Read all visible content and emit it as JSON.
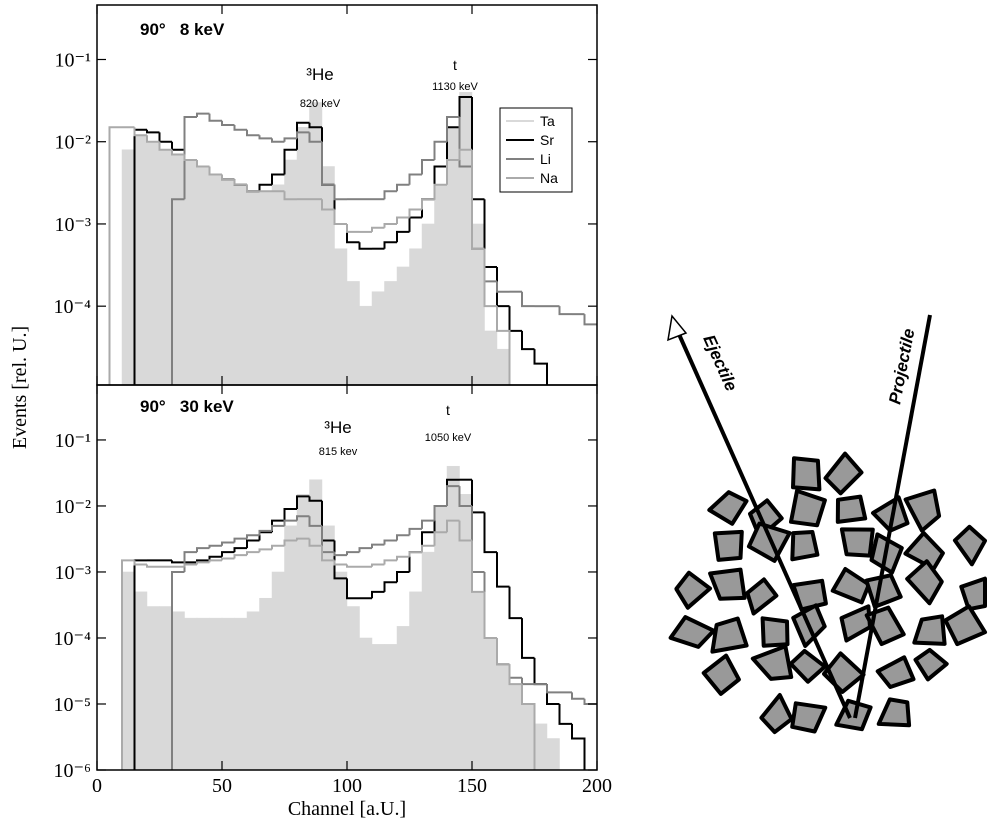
{
  "chart_data": [
    {
      "type": "histogram",
      "ylabel": "Events [rel. U.]",
      "log_y": true,
      "legend": "right",
      "annotations": [
        "90°   8 keV",
        "³He",
        "820 keV",
        "t",
        "1130 keV"
      ],
      "xlim": [
        0,
        200
      ],
      "ylim": [
        1.1e-05,
        0.46
      ],
      "yticks": [
        {
          "value": 0.1,
          "label": "10⁻¹"
        },
        {
          "value": 0.01,
          "label": "10⁻²"
        },
        {
          "value": 0.001,
          "label": "10⁻³"
        },
        {
          "value": 0.0001,
          "label": "10⁻⁴"
        }
      ],
      "bins": [
        0,
        5,
        10,
        15,
        20,
        25,
        30,
        35,
        40,
        45,
        50,
        55,
        60,
        65,
        70,
        75,
        80,
        85,
        90,
        95,
        100,
        105,
        110,
        115,
        120,
        125,
        130,
        135,
        140,
        145,
        150,
        155,
        160,
        165,
        170,
        175,
        180,
        185,
        190,
        195,
        200
      ],
      "series": [
        {
          "name": "Ta",
          "color": "#d9d9d9",
          "style": "filled",
          "values": [
            null,
            null,
            0.008,
            0.012,
            0.01,
            0.008,
            0.007,
            0.006,
            0.005,
            0.004,
            0.0035,
            0.003,
            0.0025,
            0.0025,
            0.003,
            0.006,
            0.015,
            0.03,
            0.005,
            0.0005,
            0.0002,
            0.0001,
            0.00015,
            0.0002,
            0.0003,
            0.0005,
            0.001,
            0.003,
            0.015,
            0.04,
            0.001,
            5e-05,
            3e-05,
            null,
            null,
            null,
            null,
            null,
            null,
            null
          ]
        },
        {
          "name": "Sr",
          "color": "#000000",
          "style": "step",
          "values": [
            null,
            null,
            null,
            0.014,
            0.013,
            0.01,
            0.008,
            0.006,
            0.005,
            0.004,
            0.0035,
            0.003,
            0.0025,
            0.003,
            0.004,
            0.008,
            0.017,
            0.015,
            0.003,
            0.001,
            0.0006,
            0.0005,
            0.0005,
            0.0006,
            0.0008,
            0.0012,
            0.002,
            0.005,
            0.015,
            0.035,
            0.002,
            0.0003,
            0.0001,
            5e-05,
            3e-05,
            2e-05,
            null,
            null,
            null,
            null
          ]
        },
        {
          "name": "Li",
          "color": "#808080",
          "style": "step",
          "values": [
            null,
            null,
            null,
            null,
            null,
            null,
            0.002,
            0.02,
            0.022,
            0.018,
            0.016,
            0.014,
            0.012,
            0.011,
            0.01,
            0.011,
            0.013,
            0.01,
            0.003,
            0.002,
            0.002,
            0.002,
            0.002,
            0.0025,
            0.003,
            0.004,
            0.006,
            0.01,
            0.02,
            0.005,
            0.0005,
            0.0002,
            0.00015,
            0.00015,
            0.0001,
            0.0001,
            0.0001,
            8e-05,
            8e-05,
            6e-05
          ]
        },
        {
          "name": "Na",
          "color": "#aaaaaa",
          "style": "step",
          "values": [
            null,
            0.015,
            0.015,
            0.012,
            0.01,
            0.008,
            0.007,
            0.006,
            0.005,
            0.004,
            0.0035,
            0.003,
            0.0025,
            0.0025,
            0.0025,
            0.002,
            0.002,
            0.002,
            0.0015,
            0.001,
            0.0008,
            0.0008,
            0.0009,
            0.001,
            0.0012,
            0.0015,
            0.002,
            0.003,
            0.006,
            0.008,
            0.0005,
            0.0001,
            5e-05,
            null,
            null,
            null,
            null,
            null,
            null,
            null
          ]
        }
      ]
    },
    {
      "type": "histogram",
      "xlabel": "Channel [a.U.]",
      "log_y": true,
      "annotations": [
        "90°   30 keV",
        "³He",
        "815 kev",
        "t",
        "1050 keV"
      ],
      "xlim": [
        0,
        200
      ],
      "xticks": [
        0,
        50,
        100,
        150,
        200
      ],
      "ylim": [
        1e-06,
        0.68
      ],
      "yticks": [
        {
          "value": 0.1,
          "label": "10⁻¹"
        },
        {
          "value": 0.01,
          "label": "10⁻²"
        },
        {
          "value": 0.001,
          "label": "10⁻³"
        },
        {
          "value": 0.0001,
          "label": "10⁻⁴"
        },
        {
          "value": 1e-05,
          "label": "10⁻⁵"
        },
        {
          "value": 1e-06,
          "label": "10⁻⁶"
        }
      ],
      "bins": [
        0,
        5,
        10,
        15,
        20,
        25,
        30,
        35,
        40,
        45,
        50,
        55,
        60,
        65,
        70,
        75,
        80,
        85,
        90,
        95,
        100,
        105,
        110,
        115,
        120,
        125,
        130,
        135,
        140,
        145,
        150,
        155,
        160,
        165,
        170,
        175,
        180,
        185,
        190,
        195,
        200
      ],
      "series": [
        {
          "name": "Ta",
          "color": "#d9d9d9",
          "style": "filled",
          "values": [
            null,
            null,
            0.001,
            0.0005,
            0.0003,
            0.0003,
            0.00025,
            0.0002,
            0.0002,
            0.0002,
            0.0002,
            0.0002,
            0.00025,
            0.0004,
            0.001,
            0.005,
            0.015,
            0.025,
            0.005,
            0.001,
            0.0003,
            0.0001,
            8e-05,
            8e-05,
            0.00015,
            0.0005,
            0.002,
            0.01,
            0.04,
            0.015,
            0.0005,
            0.0001,
            4e-05,
            2e-05,
            1e-05,
            5e-06,
            3e-06,
            null,
            null,
            null
          ]
        },
        {
          "name": "Sr",
          "color": "#000000",
          "style": "step",
          "values": [
            null,
            null,
            null,
            0.0015,
            0.0015,
            0.0015,
            0.0014,
            0.0014,
            0.0015,
            0.0017,
            0.002,
            0.0023,
            0.003,
            0.004,
            0.006,
            0.009,
            0.014,
            0.012,
            0.003,
            0.0008,
            0.0004,
            0.0004,
            0.0005,
            0.0007,
            0.001,
            0.002,
            0.004,
            0.01,
            0.025,
            0.025,
            0.008,
            0.002,
            0.0006,
            0.0002,
            5e-05,
            2e-05,
            1e-05,
            5e-06,
            3e-06,
            null
          ]
        },
        {
          "name": "Li",
          "color": "#808080",
          "style": "step",
          "values": [
            null,
            null,
            null,
            null,
            null,
            null,
            0.001,
            0.002,
            0.0023,
            0.0025,
            0.0028,
            0.0032,
            0.0036,
            0.0042,
            0.005,
            0.006,
            0.007,
            0.005,
            0.002,
            0.0018,
            0.002,
            0.0023,
            0.0026,
            0.003,
            0.0036,
            0.0045,
            0.006,
            0.01,
            0.02,
            0.01,
            0.001,
            0.0001,
            4e-05,
            2.5e-05,
            2e-05,
            2e-05,
            1.5e-05,
            1.5e-05,
            1.2e-05,
            1e-05
          ]
        },
        {
          "name": "Na",
          "color": "#aaaaaa",
          "style": "step",
          "values": [
            null,
            null,
            0.0015,
            0.0013,
            0.0012,
            0.0012,
            0.0012,
            0.0013,
            0.0014,
            0.0015,
            0.0016,
            0.0018,
            0.002,
            0.0022,
            0.0025,
            0.003,
            0.0032,
            0.0025,
            0.0015,
            0.0013,
            0.0012,
            0.0012,
            0.0013,
            0.0015,
            0.0017,
            0.002,
            0.0025,
            0.004,
            0.006,
            0.003,
            0.0005,
            0.0001,
            4e-05,
            2e-05,
            1e-05,
            null,
            null,
            null,
            null,
            null
          ]
        }
      ]
    }
  ],
  "diagram": {
    "ejectile_label": "Ejectile",
    "projectile_label": "Projectile"
  }
}
